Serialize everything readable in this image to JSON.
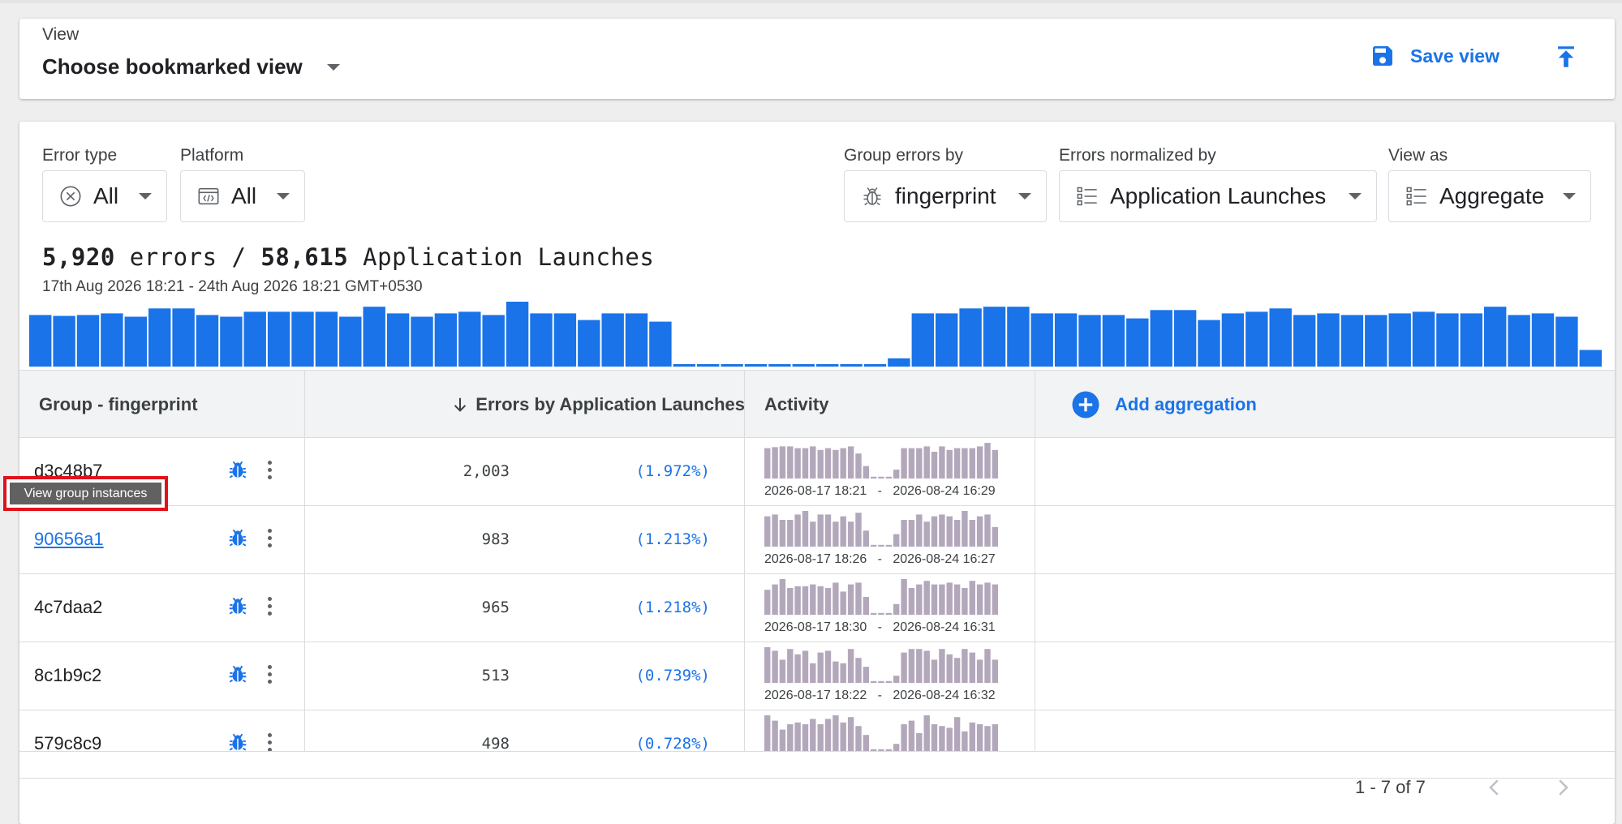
{
  "view_bar": {
    "label": "View",
    "selected": "Choose bookmarked view",
    "save_label": "Save view"
  },
  "filters": [
    {
      "label": "Error type",
      "value": "All",
      "icon": "error-circle-icon"
    },
    {
      "label": "Platform",
      "value": "All",
      "icon": "code-window-icon"
    },
    {
      "label": "Group errors by",
      "value": "fingerprint",
      "icon": "bug-icon"
    },
    {
      "label": "Errors normalized by",
      "value": "Application Launches",
      "icon": "list-icon"
    },
    {
      "label": "View as",
      "value": "Aggregate",
      "icon": "list-icon"
    }
  ],
  "summary": {
    "errors": "5,920",
    "errors_word": " errors / ",
    "launches": "58,615",
    "launches_word": " Application Launches",
    "date_range": "17th Aug 2026 18:21 - 24th Aug 2026 18:21 GMT+0530"
  },
  "chart_data": {
    "type": "bar",
    "title": "",
    "xlabel": "",
    "ylabel": "",
    "color": "#1a73e8",
    "values": [
      62,
      61,
      62,
      64,
      60,
      70,
      70,
      62,
      60,
      66,
      66,
      66,
      66,
      60,
      72,
      64,
      60,
      64,
      66,
      62,
      78,
      64,
      64,
      56,
      64,
      64,
      54,
      3,
      3,
      3,
      3,
      3,
      3,
      3,
      3,
      3,
      10,
      64,
      64,
      70,
      72,
      72,
      64,
      64,
      62,
      62,
      58,
      68,
      68,
      56,
      64,
      66,
      70,
      62,
      64,
      62,
      62,
      64,
      66,
      64,
      64,
      72,
      62,
      64,
      60,
      20
    ]
  },
  "table": {
    "headers": {
      "group": "Group - fingerprint",
      "errors": "Errors by Application Launches",
      "activity": "Activity",
      "add": "Add aggregation"
    },
    "rows": [
      {
        "id": "d3c48b7",
        "count": "2,003",
        "pct": "(1.972%)",
        "start": "2026-08-17 18:21",
        "end": "2026-08-24 16:29",
        "spark": [
          0.85,
          0.88,
          0.9,
          0.9,
          0.85,
          0.85,
          0.9,
          0.8,
          0.85,
          0.8,
          0.85,
          0.9,
          0.7,
          0.35,
          0.05,
          0.05,
          0.05,
          0.25,
          0.85,
          0.85,
          0.85,
          0.9,
          0.75,
          0.9,
          0.8,
          0.85,
          0.85,
          0.85,
          0.9,
          1.0,
          0.8
        ]
      },
      {
        "id": "90656a1",
        "count": "983",
        "pct": "(1.213%)",
        "start": "2026-08-17 18:26",
        "end": "2026-08-24 16:27",
        "spark": [
          0.85,
          0.9,
          0.75,
          0.75,
          0.9,
          1.0,
          0.7,
          0.9,
          0.9,
          0.7,
          0.85,
          0.7,
          0.95,
          0.45,
          0.05,
          0.05,
          0.05,
          0.35,
          0.75,
          0.75,
          0.9,
          0.7,
          0.85,
          0.9,
          0.85,
          0.75,
          1.0,
          0.75,
          0.85,
          0.9,
          0.55
        ]
      },
      {
        "id": "4c7daa2",
        "count": "965",
        "pct": "(1.218%)",
        "start": "2026-08-17 18:30",
        "end": "2026-08-24 16:31",
        "spark": [
          0.7,
          0.85,
          1.0,
          0.75,
          0.8,
          0.8,
          0.85,
          0.8,
          0.75,
          0.9,
          0.65,
          0.85,
          0.9,
          0.5,
          0.05,
          0.05,
          0.05,
          0.3,
          1.0,
          0.75,
          0.85,
          0.95,
          0.85,
          0.85,
          0.9,
          0.85,
          0.75,
          0.95,
          0.85,
          0.9,
          0.85
        ]
      },
      {
        "id": "8c1b9c2",
        "count": "513",
        "pct": "(0.739%)",
        "start": "2026-08-17 18:22",
        "end": "2026-08-24 16:32",
        "spark": [
          1.0,
          0.9,
          0.65,
          0.95,
          0.8,
          0.9,
          0.55,
          0.85,
          0.9,
          0.6,
          0.55,
          0.95,
          0.7,
          0.45,
          0.05,
          0.05,
          0.05,
          0.2,
          0.85,
          0.95,
          0.95,
          0.9,
          0.65,
          0.95,
          0.8,
          0.7,
          0.95,
          0.85,
          0.65,
          0.95,
          0.65
        ]
      },
      {
        "id": "579c8c9",
        "count": "498",
        "pct": "(0.728%)",
        "start": "",
        "end": "",
        "spark": [
          1.0,
          0.85,
          0.6,
          0.75,
          0.8,
          0.75,
          0.9,
          0.75,
          0.9,
          1.0,
          0.8,
          0.95,
          0.7,
          0.45,
          0.05,
          0.05,
          0.05,
          0.2,
          0.75,
          0.85,
          0.5,
          1.0,
          0.75,
          0.7,
          0.65,
          0.95,
          0.55,
          0.8,
          0.75,
          0.7,
          0.75
        ]
      }
    ],
    "spark_color": "#b3a8bb"
  },
  "pagination": {
    "text": "1 - 7 of 7"
  },
  "tooltip": {
    "text": "View group instances"
  },
  "colors": {
    "accent": "#1a73e8",
    "highlight": "#e0121b"
  }
}
